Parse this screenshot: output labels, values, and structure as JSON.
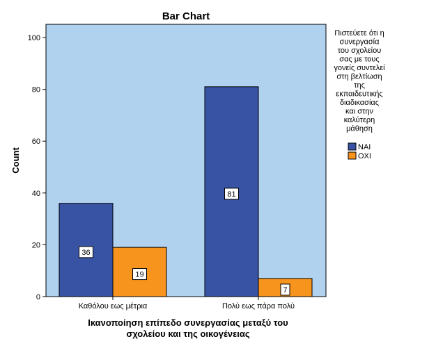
{
  "chart_data": {
    "type": "bar",
    "title": "Bar Chart",
    "xlabel_lines": [
      "Ικανοποίηση επίπεδο συνεργασίας μεταξύ του",
      "σχολείου και της οικογένειας"
    ],
    "ylabel": "Count",
    "ylim": [
      0,
      100
    ],
    "yticks": [
      0,
      20,
      40,
      60,
      80,
      100
    ],
    "categories": [
      "Καθόλου εως μέτρια",
      "Πολύ εως πάρα πολύ"
    ],
    "series": [
      {
        "name": "ΝΑΙ",
        "values": [
          36,
          81
        ],
        "color": "#3953a4"
      },
      {
        "name": "ΟΧΙ",
        "values": [
          19,
          7
        ],
        "color": "#f7941d"
      }
    ],
    "legend_title_lines": [
      "Πιστεύετε ότι η",
      "συνεργασία",
      "του σχολείου",
      "σας με τους",
      "γονείς συντελεί",
      "στη βελτίωση",
      "της",
      "εκπαιδευτικής",
      "διαδικασίας",
      "και στην",
      "καλύτερη",
      "μάθηση"
    ],
    "legend_position": "right",
    "plot_background": "#b0d2ee",
    "grid": false
  }
}
